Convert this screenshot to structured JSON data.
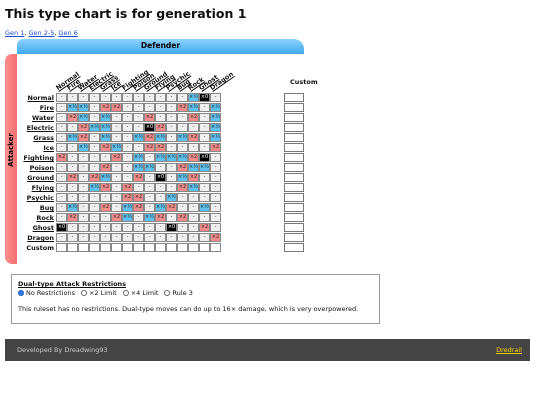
{
  "title": "This type chart is for generation 1",
  "gen_links": [
    "Gen 1",
    "Gen 2-5",
    "Gen 6"
  ],
  "defender_label": "Defender",
  "attacker_label": "Attacker",
  "custom_label": "Custom",
  "types": [
    "Normal",
    "Fire",
    "Water",
    "Electric",
    "Grass",
    "Ice",
    "Fighting",
    "Poison",
    "Ground",
    "Flying",
    "Psychic",
    "Bug",
    "Rock",
    "Ghost",
    "Dragon"
  ],
  "matrix": [
    [
      "-",
      "-",
      "-",
      "-",
      "-",
      "-",
      "-",
      "-",
      "-",
      "-",
      "-",
      "-",
      "×½",
      "×0",
      "-"
    ],
    [
      "-",
      "×½",
      "×½",
      "-",
      "×2",
      "×2",
      "-",
      "-",
      "-",
      "-",
      "-",
      "×2",
      "×½",
      "-",
      "×½"
    ],
    [
      "-",
      "×2",
      "×½",
      "-",
      "×½",
      "-",
      "-",
      "-",
      "×2",
      "-",
      "-",
      "-",
      "×2",
      "-",
      "×½"
    ],
    [
      "-",
      "-",
      "×2",
      "×½",
      "×½",
      "-",
      "-",
      "-",
      "×0",
      "×2",
      "-",
      "-",
      "-",
      "-",
      "×½"
    ],
    [
      "-",
      "×½",
      "×2",
      "-",
      "×½",
      "-",
      "-",
      "×½",
      "×2",
      "×½",
      "-",
      "×½",
      "×2",
      "-",
      "×½"
    ],
    [
      "-",
      "-",
      "×½",
      "-",
      "×2",
      "×½",
      "-",
      "-",
      "×2",
      "×2",
      "-",
      "-",
      "-",
      "-",
      "×2"
    ],
    [
      "×2",
      "-",
      "-",
      "-",
      "-",
      "×2",
      "-",
      "×½",
      "-",
      "×½",
      "×½",
      "×½",
      "×2",
      "×0",
      "-"
    ],
    [
      "-",
      "-",
      "-",
      "-",
      "×2",
      "-",
      "-",
      "×½",
      "×½",
      "-",
      "-",
      "×2",
      "×½",
      "×½",
      "-"
    ],
    [
      "-",
      "×2",
      "-",
      "×2",
      "×½",
      "-",
      "-",
      "×2",
      "-",
      "×0",
      "-",
      "×½",
      "×2",
      "-",
      "-"
    ],
    [
      "-",
      "-",
      "-",
      "×½",
      "×2",
      "-",
      "×2",
      "-",
      "-",
      "-",
      "-",
      "×2",
      "×½",
      "-",
      "-"
    ],
    [
      "-",
      "-",
      "-",
      "-",
      "-",
      "-",
      "×2",
      "×2",
      "-",
      "-",
      "×½",
      "-",
      "-",
      "-",
      "-"
    ],
    [
      "-",
      "×½",
      "-",
      "-",
      "×2",
      "-",
      "×½",
      "×2",
      "-",
      "×½",
      "×2",
      "-",
      "-",
      "×½",
      "-"
    ],
    [
      "-",
      "×2",
      "-",
      "-",
      "-",
      "×2",
      "×½",
      "-",
      "×½",
      "×2",
      "-",
      "×2",
      "-",
      "-",
      "-"
    ],
    [
      "×0",
      "-",
      "-",
      "-",
      "-",
      "-",
      "-",
      "-",
      "-",
      "-",
      "×0",
      "-",
      "-",
      "×2",
      "-"
    ],
    [
      "-",
      "-",
      "-",
      "-",
      "-",
      "-",
      "-",
      "-",
      "-",
      "-",
      "-",
      "-",
      "-",
      "-",
      "×2"
    ]
  ],
  "dual": {
    "heading": "Dual-type Attack Restrictions",
    "options": [
      "No Restrictions",
      "×2 Limit",
      "×4 Limit",
      "Rule 3"
    ],
    "selected_index": 0,
    "description": "This ruleset has no restrictions. Dual-type moves can do up to 16× damage, which is very overpowered."
  },
  "footer": {
    "developer": "Developed By Dreadwing93",
    "link": "Dredrail"
  }
}
